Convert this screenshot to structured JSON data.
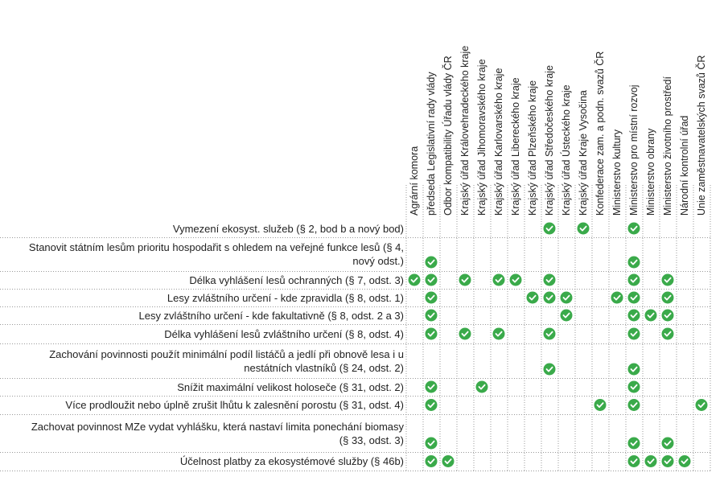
{
  "columns": [
    "Agrární komora",
    "předseda Legislativní rady vlády",
    "Odbor kompatibility Úřadu vlády ČR",
    "Krajský úřad Královehradeckého kraje",
    "Krajský úřad Jihomoravského kraje",
    "Krajský úřad Karlovarského kraje",
    "Krajský úřad Libereckého kraje",
    "Krajský úřad Plzeňského kraje",
    "Krajský úřad Středočeského kraje",
    "Krajský úřad Ústeckého kraje",
    "Krajský úřad Kraje Vysočina",
    "Konfederace zam. a podn. svazů ČR",
    "Ministerstvo kultury",
    "Ministerstvo pro místní rozvoj",
    "Ministerstvo obrany",
    "Ministerstvo životního prostředí",
    "Národní kontrolní úřad",
    "Unie zaměstnavatelských svazů ČR"
  ],
  "rows": [
    {
      "label": "Vymezení ekosyst. služeb (§ 2, bod b a nový bod)",
      "cells": [
        false,
        false,
        false,
        false,
        false,
        false,
        false,
        false,
        true,
        false,
        true,
        false,
        false,
        true,
        false,
        false,
        false,
        false
      ]
    },
    {
      "label": "Stanovit státním lesům prioritu hospodařit s ohledem na veřejné funkce lesů (§ 4, nový odst.)",
      "cells": [
        false,
        true,
        false,
        false,
        false,
        false,
        false,
        false,
        false,
        false,
        false,
        false,
        false,
        true,
        false,
        false,
        false,
        false
      ]
    },
    {
      "label": "Délka vyhlášení lesů ochranných (§ 7, odst. 3)",
      "cells": [
        true,
        true,
        false,
        true,
        false,
        true,
        true,
        false,
        true,
        false,
        false,
        false,
        false,
        true,
        false,
        true,
        false,
        false
      ]
    },
    {
      "label": "Lesy zvláštního určení - kde zpravidla (§ 8, odst. 1)",
      "cells": [
        false,
        true,
        false,
        false,
        false,
        false,
        false,
        true,
        true,
        true,
        false,
        false,
        true,
        true,
        false,
        true,
        false,
        false
      ]
    },
    {
      "label": "Lesy zvláštního určení - kde fakultativně (§ 8, odst. 2 a 3)",
      "cells": [
        false,
        true,
        false,
        false,
        false,
        false,
        false,
        false,
        false,
        true,
        false,
        false,
        false,
        true,
        true,
        true,
        false,
        false
      ]
    },
    {
      "label": "Délka vyhlášení lesů zvláštního určení (§ 8, odst. 4)",
      "cells": [
        false,
        true,
        false,
        true,
        false,
        true,
        false,
        false,
        true,
        false,
        false,
        false,
        false,
        true,
        false,
        true,
        false,
        false
      ]
    },
    {
      "label": "Zachování povinnosti použít minimální podíl listáčů a jedlí při obnově lesa i u nestátních vlastníků (§ 24, odst. 2)",
      "cells": [
        false,
        false,
        false,
        false,
        false,
        false,
        false,
        false,
        true,
        false,
        false,
        false,
        false,
        true,
        false,
        false,
        false,
        false
      ]
    },
    {
      "label": "Snížit maximální velikost holoseče (§ 31, odst. 2)",
      "cells": [
        false,
        true,
        false,
        false,
        true,
        false,
        false,
        false,
        false,
        false,
        false,
        false,
        false,
        true,
        false,
        false,
        false,
        false
      ]
    },
    {
      "label": "Více prodloužit nebo úplně zrušit lhůtu k zalesnění porostu (§ 31, odst. 4)",
      "cells": [
        false,
        true,
        false,
        false,
        false,
        false,
        false,
        false,
        false,
        false,
        false,
        true,
        false,
        true,
        false,
        false,
        false,
        true
      ]
    },
    {
      "label": "Zachovat povinnost MZe vydat vyhlášku, která nastaví limita ponechání biomasy (§ 33, odst. 3)",
      "cells": [
        false,
        true,
        false,
        false,
        false,
        false,
        false,
        false,
        false,
        false,
        false,
        false,
        false,
        true,
        false,
        true,
        false,
        false
      ]
    },
    {
      "label": "Účelnost platby za ekosystémové služby (§ 46b)",
      "cells": [
        false,
        true,
        true,
        false,
        false,
        false,
        false,
        false,
        false,
        false,
        false,
        false,
        false,
        true,
        true,
        true,
        true,
        false
      ]
    }
  ]
}
